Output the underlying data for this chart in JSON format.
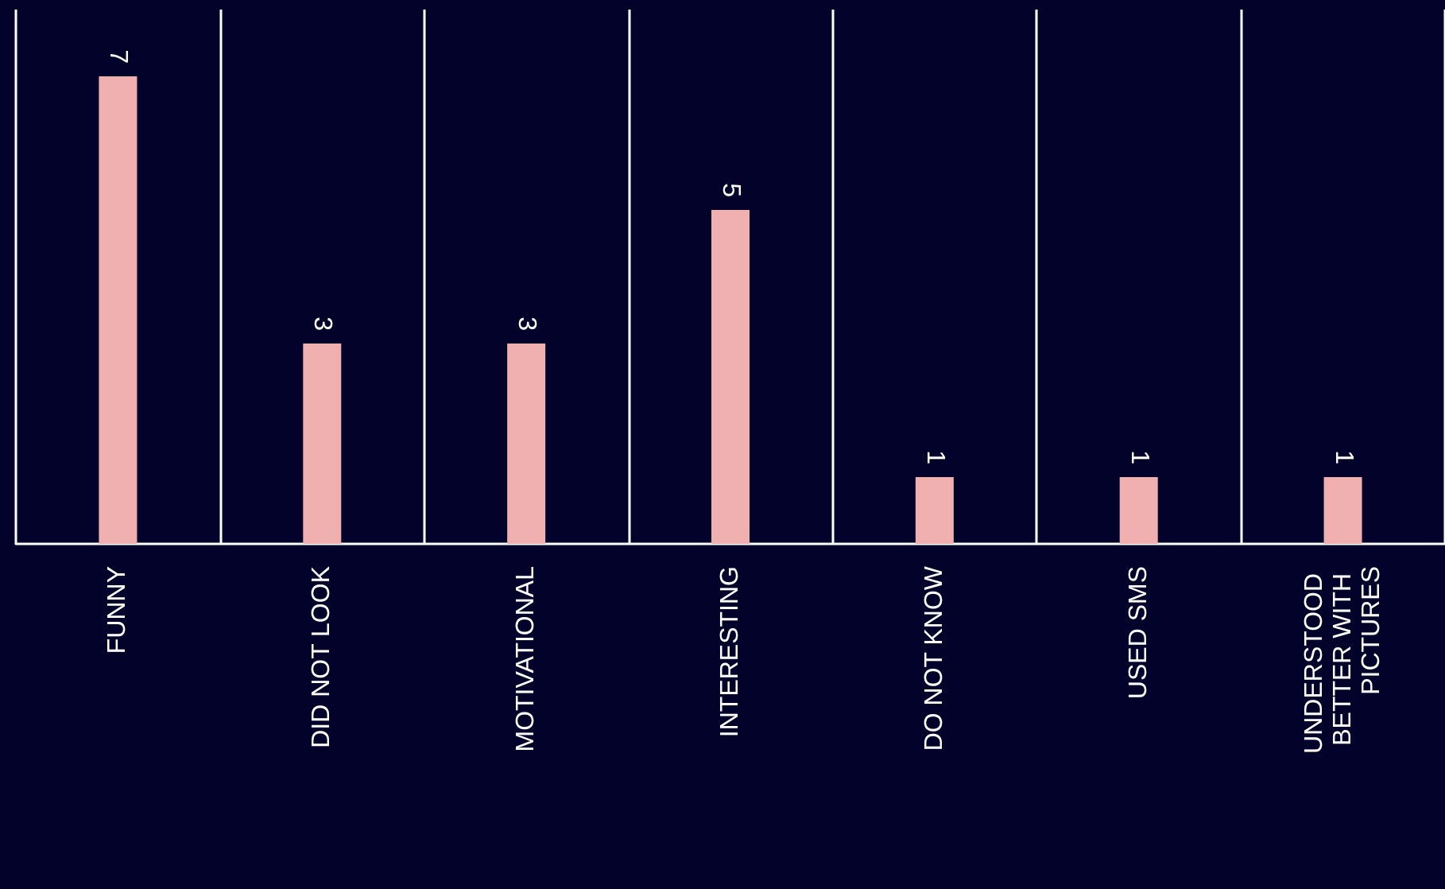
{
  "chart_data": {
    "type": "bar",
    "categories": [
      "FUNNY",
      "DID NOT LOOK",
      "MOTIVATIONAL",
      "INTERESTING",
      "DO NOT KNOW",
      "USED SMS",
      "UNDERSTOOD BETTER WITH PICTURES"
    ],
    "values": [
      7,
      3,
      3,
      5,
      1,
      1,
      1
    ],
    "color": "#f0b0b0",
    "data_labels": true,
    "grid": "x"
  }
}
